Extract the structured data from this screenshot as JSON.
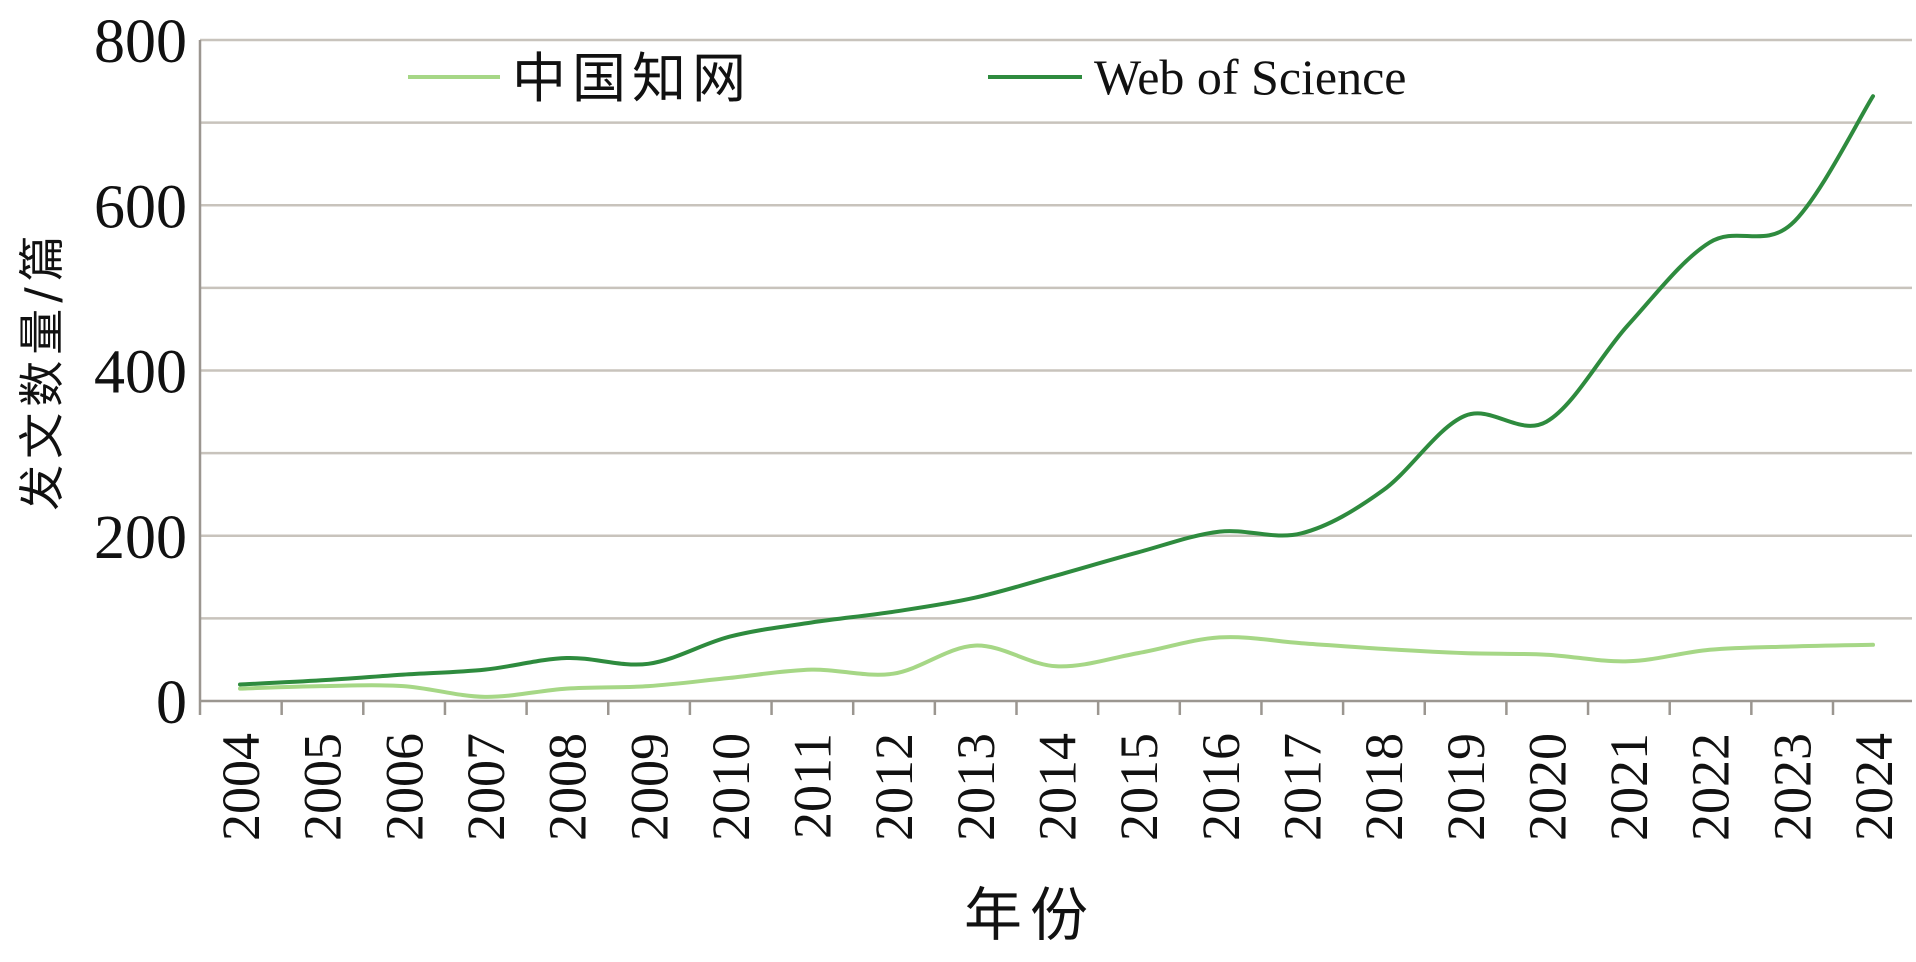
{
  "chart_data": {
    "type": "line",
    "title": "",
    "xlabel": "年份",
    "ylabel": "发文数量/篇",
    "ylim": [
      0,
      800
    ],
    "y_ticks": [
      "0",
      "200",
      "400",
      "600",
      "800"
    ],
    "y_gridlines": [
      100,
      200,
      300,
      400,
      500,
      600,
      700,
      800
    ],
    "grid": true,
    "legend_position": "top",
    "categories": [
      "2004",
      "2005",
      "2006",
      "2007",
      "2008",
      "2009",
      "2010",
      "2011",
      "2012",
      "2013",
      "2014",
      "2015",
      "2016",
      "2017",
      "2018",
      "2019",
      "2020",
      "2021",
      "2022",
      "2023",
      "2024"
    ],
    "series": [
      {
        "name": "中国知网",
        "color": "#a6d786",
        "values": [
          15,
          18,
          18,
          5,
          15,
          18,
          28,
          38,
          33,
          67,
          42,
          58,
          77,
          70,
          63,
          58,
          56,
          48,
          62,
          66,
          68
        ]
      },
      {
        "name": "Web of Science",
        "color": "#2e8b3e",
        "values": [
          20,
          25,
          32,
          38,
          52,
          45,
          78,
          95,
          108,
          125,
          152,
          180,
          205,
          203,
          255,
          345,
          338,
          455,
          555,
          577,
          732
        ]
      }
    ]
  }
}
